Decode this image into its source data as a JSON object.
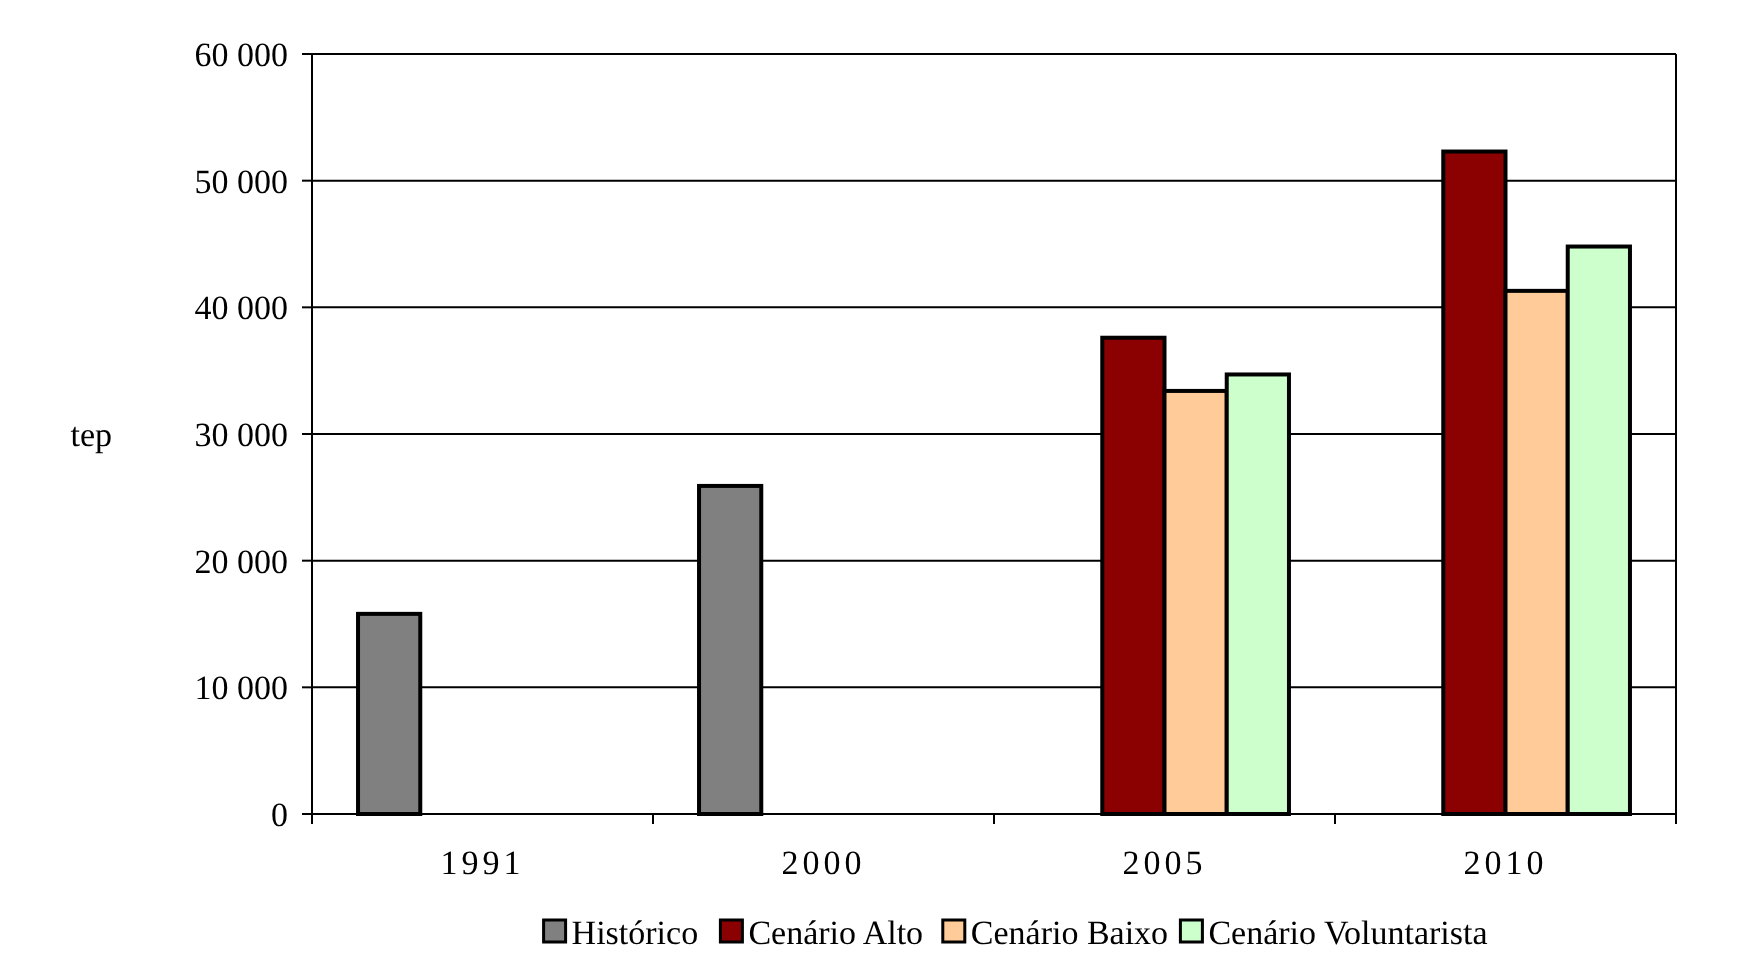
{
  "chart_data": {
    "type": "bar",
    "ylabel": "tep",
    "categories": [
      "1991",
      "2000",
      "2005",
      "2010"
    ],
    "series": [
      {
        "name": "Histórico",
        "color": "#808080",
        "values": [
          15800,
          25900,
          null,
          null
        ]
      },
      {
        "name": "Cenário Alto",
        "color": "#8b0000",
        "values": [
          null,
          null,
          37600,
          52300
        ]
      },
      {
        "name": "Cenário Baixo",
        "color": "#ffcc99",
        "values": [
          null,
          null,
          33400,
          41300
        ]
      },
      {
        "name": "Cenário Voluntarista",
        "color": "#ccffcc",
        "values": [
          null,
          null,
          34700,
          44800
        ]
      }
    ],
    "ylim": [
      0,
      60000
    ],
    "yticks": [
      {
        "value": 0,
        "label": "0"
      },
      {
        "value": 10000,
        "label": "10 000"
      },
      {
        "value": 20000,
        "label": "20 000"
      },
      {
        "value": 30000,
        "label": "30 000"
      },
      {
        "value": 40000,
        "label": "40 000"
      },
      {
        "value": 50000,
        "label": "50 000"
      },
      {
        "value": 60000,
        "label": "60 000"
      }
    ],
    "grid": "y",
    "legend": "bottom"
  }
}
